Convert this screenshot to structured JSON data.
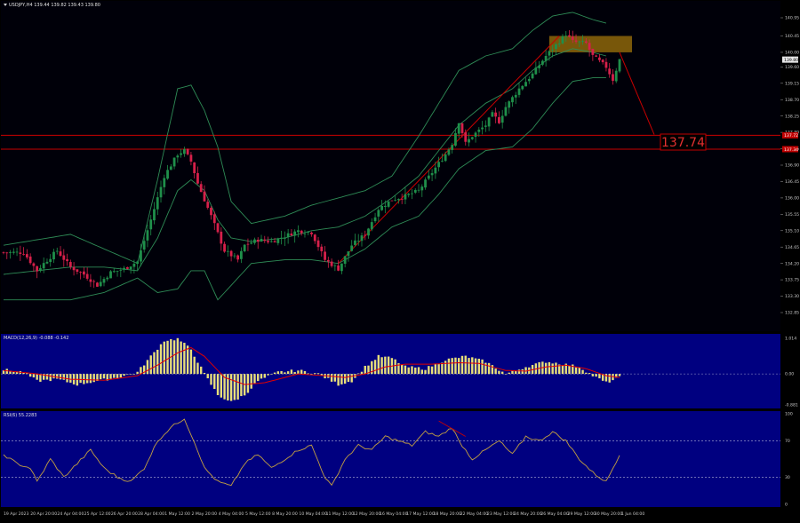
{
  "header": {
    "symbol_line": "USDJPY,H4 139.44 139.82 139.43 139.80",
    "current_price": "139.80"
  },
  "colors": {
    "main_bg": "#000009",
    "indicator_bg": "#000080",
    "candle_up": "#1f8f4a",
    "candle_down": "#d6204a",
    "bands": "#2e8b57",
    "red_line": "#c80000",
    "macd_hist": "#e8df7a",
    "macd_signal": "#e00000",
    "rsi_line": "#c4a040",
    "grid_text": "#c8c8c8"
  },
  "annotation": {
    "target_label": "137.74"
  },
  "price_axis": {
    "ticks": [
      "140.95",
      "140.45",
      "140.00",
      "139.60",
      "139.15",
      "138.70",
      "138.25",
      "137.80",
      "137.35",
      "136.90",
      "136.45",
      "136.00",
      "135.55",
      "135.10",
      "134.65",
      "134.20",
      "133.75",
      "133.30",
      "132.85"
    ],
    "tag_labels": [
      "137.72",
      "137.34"
    ]
  },
  "macd": {
    "label": "MACD(12,26,9) -0.088 -0.142",
    "ticks": [
      "1.014",
      "0.00",
      "-0.881"
    ]
  },
  "rsi": {
    "label": "RSI(6) 55.2283",
    "ticks": [
      "100",
      "70",
      "30",
      "0"
    ]
  },
  "time_axis": {
    "labels": [
      "19 Apr 2023",
      "20 Apr 20:00",
      "24 Apr 04:00",
      "25 Apr 12:00",
      "26 Apr 20:00",
      "28 Apr 04:00",
      "1 May 12:00",
      "2 May 20:00",
      "4 May 04:00",
      "5 May 12:00",
      "8 May 20:00",
      "10 May 04:00",
      "11 May 12:00",
      "12 May 20:00",
      "16 May 04:00",
      "17 May 12:00",
      "18 May 20:00",
      "22 May 04:00",
      "23 May 12:00",
      "24 May 20:00",
      "26 May 04:00",
      "29 May 12:00",
      "30 May 20:00",
      "1 Jun 04:00"
    ]
  },
  "chart_data": [
    {
      "type": "candlestick",
      "title": "USDJPY,H4",
      "ylim": [
        132.6,
        141.3
      ],
      "y_ticks": [
        140.95,
        140.45,
        140.0,
        139.6,
        139.15,
        138.7,
        138.25,
        137.8,
        137.35,
        136.9,
        136.45,
        136.0,
        135.55,
        135.1,
        134.65,
        134.2,
        133.75,
        133.3,
        132.85
      ],
      "close_anchors": [
        [
          0,
          134.5
        ],
        [
          6,
          134.5
        ],
        [
          10,
          134.0
        ],
        [
          12,
          134.2
        ],
        [
          16,
          134.55
        ],
        [
          20,
          134.1
        ],
        [
          24,
          133.9
        ],
        [
          28,
          133.6
        ],
        [
          32,
          133.95
        ],
        [
          36,
          134.05
        ],
        [
          40,
          134.25
        ],
        [
          44,
          135.4
        ],
        [
          48,
          136.6
        ],
        [
          52,
          137.2
        ],
        [
          54,
          137.3
        ],
        [
          56,
          137.0
        ],
        [
          58,
          136.4
        ],
        [
          62,
          135.5
        ],
        [
          66,
          134.55
        ],
        [
          70,
          134.3
        ],
        [
          72,
          134.7
        ],
        [
          76,
          134.85
        ],
        [
          80,
          134.8
        ],
        [
          84,
          134.95
        ],
        [
          88,
          135.1
        ],
        [
          92,
          135.05
        ],
        [
          96,
          134.3
        ],
        [
          100,
          134.05
        ],
        [
          104,
          134.7
        ],
        [
          108,
          135.0
        ],
        [
          112,
          135.7
        ],
        [
          116,
          135.95
        ],
        [
          120,
          136.05
        ],
        [
          124,
          136.2
        ],
        [
          128,
          136.7
        ],
        [
          132,
          137.2
        ],
        [
          134,
          137.5
        ],
        [
          136,
          138.1
        ],
        [
          138,
          137.5
        ],
        [
          140,
          137.7
        ],
        [
          144,
          138.0
        ],
        [
          146,
          138.3
        ],
        [
          148,
          138.1
        ],
        [
          150,
          138.5
        ],
        [
          154,
          139.0
        ],
        [
          158,
          139.4
        ],
        [
          162,
          139.9
        ],
        [
          166,
          140.3
        ],
        [
          168,
          140.5
        ],
        [
          170,
          140.3
        ],
        [
          174,
          140.25
        ],
        [
          176,
          139.9
        ],
        [
          180,
          139.6
        ],
        [
          182,
          139.25
        ],
        [
          184,
          139.8
        ]
      ],
      "bollinger_bands": {
        "upper": [
          [
            0,
            134.7
          ],
          [
            20,
            135.0
          ],
          [
            30,
            134.6
          ],
          [
            40,
            134.2
          ],
          [
            46,
            136.5
          ],
          [
            52,
            139.0
          ],
          [
            56,
            139.1
          ],
          [
            60,
            138.4
          ],
          [
            64,
            137.4
          ],
          [
            68,
            135.9
          ],
          [
            74,
            135.3
          ],
          [
            84,
            135.5
          ],
          [
            92,
            135.8
          ],
          [
            100,
            136.0
          ],
          [
            108,
            136.2
          ],
          [
            116,
            136.6
          ],
          [
            124,
            137.7
          ],
          [
            130,
            138.6
          ],
          [
            136,
            139.5
          ],
          [
            144,
            139.9
          ],
          [
            152,
            140.1
          ],
          [
            158,
            140.6
          ],
          [
            164,
            141.0
          ],
          [
            170,
            141.1
          ],
          [
            176,
            140.9
          ],
          [
            180,
            140.8
          ]
        ],
        "middle": [
          [
            0,
            133.9
          ],
          [
            20,
            134.1
          ],
          [
            30,
            134.1
          ],
          [
            40,
            134.0
          ],
          [
            46,
            134.9
          ],
          [
            52,
            136.2
          ],
          [
            56,
            136.5
          ],
          [
            60,
            136.2
          ],
          [
            64,
            135.4
          ],
          [
            68,
            134.9
          ],
          [
            74,
            134.8
          ],
          [
            84,
            134.9
          ],
          [
            92,
            135.1
          ],
          [
            100,
            135.2
          ],
          [
            108,
            135.5
          ],
          [
            116,
            136.0
          ],
          [
            124,
            136.6
          ],
          [
            130,
            137.3
          ],
          [
            136,
            138.0
          ],
          [
            144,
            138.6
          ],
          [
            152,
            139.0
          ],
          [
            158,
            139.5
          ],
          [
            164,
            139.9
          ],
          [
            170,
            140.1
          ],
          [
            176,
            140.0
          ],
          [
            180,
            139.9
          ]
        ],
        "lower": [
          [
            0,
            133.2
          ],
          [
            20,
            133.2
          ],
          [
            30,
            133.4
          ],
          [
            40,
            133.8
          ],
          [
            46,
            133.4
          ],
          [
            52,
            133.5
          ],
          [
            56,
            134.0
          ],
          [
            60,
            134.0
          ],
          [
            64,
            133.2
          ],
          [
            68,
            133.6
          ],
          [
            74,
            134.2
          ],
          [
            84,
            134.3
          ],
          [
            92,
            134.3
          ],
          [
            100,
            134.2
          ],
          [
            108,
            134.6
          ],
          [
            116,
            135.2
          ],
          [
            124,
            135.5
          ],
          [
            130,
            136.1
          ],
          [
            136,
            136.8
          ],
          [
            144,
            137.3
          ],
          [
            152,
            137.4
          ],
          [
            158,
            137.9
          ],
          [
            164,
            138.6
          ],
          [
            170,
            139.2
          ],
          [
            176,
            139.3
          ],
          [
            180,
            139.3
          ]
        ]
      },
      "trendline": {
        "from": [
          "11 May 12:00",
          134.2
        ],
        "to": [
          "29 May 12:00",
          140.4
        ]
      },
      "projection": {
        "from": [
          "1 Jun 04:00",
          140.0
        ],
        "to_price": 137.74
      },
      "horizontal_levels": [
        137.72,
        137.34
      ],
      "resistance_zone": [
        140.0,
        140.45
      ]
    },
    {
      "type": "bar",
      "title": "MACD(12,26,9) -0.088 -0.142",
      "ylim": [
        -0.881,
        1.014
      ],
      "histogram_anchors": [
        [
          0,
          0.12
        ],
        [
          6,
          0.05
        ],
        [
          10,
          -0.2
        ],
        [
          16,
          -0.15
        ],
        [
          22,
          -0.3
        ],
        [
          28,
          -0.2
        ],
        [
          34,
          -0.1
        ],
        [
          40,
          0.05
        ],
        [
          44,
          0.5
        ],
        [
          48,
          0.95
        ],
        [
          52,
          1.0
        ],
        [
          56,
          0.7
        ],
        [
          60,
          0.0
        ],
        [
          64,
          -0.6
        ],
        [
          68,
          -0.8
        ],
        [
          72,
          -0.6
        ],
        [
          76,
          -0.2
        ],
        [
          82,
          0.05
        ],
        [
          88,
          0.1
        ],
        [
          94,
          0.0
        ],
        [
          100,
          -0.3
        ],
        [
          104,
          -0.2
        ],
        [
          108,
          0.2
        ],
        [
          112,
          0.5
        ],
        [
          116,
          0.45
        ],
        [
          120,
          0.2
        ],
        [
          126,
          0.15
        ],
        [
          132,
          0.4
        ],
        [
          138,
          0.5
        ],
        [
          144,
          0.35
        ],
        [
          150,
          0.0
        ],
        [
          156,
          0.2
        ],
        [
          162,
          0.35
        ],
        [
          166,
          0.3
        ],
        [
          172,
          0.2
        ],
        [
          176,
          -0.05
        ],
        [
          180,
          -0.25
        ],
        [
          184,
          -0.1
        ]
      ],
      "signal_anchors": [
        [
          0,
          0.1
        ],
        [
          10,
          0.0
        ],
        [
          20,
          -0.15
        ],
        [
          30,
          -0.18
        ],
        [
          40,
          -0.05
        ],
        [
          46,
          0.25
        ],
        [
          52,
          0.6
        ],
        [
          56,
          0.75
        ],
        [
          60,
          0.5
        ],
        [
          66,
          -0.1
        ],
        [
          72,
          -0.3
        ],
        [
          78,
          -0.25
        ],
        [
          88,
          0.0
        ],
        [
          96,
          -0.05
        ],
        [
          102,
          -0.1
        ],
        [
          108,
          0.0
        ],
        [
          114,
          0.2
        ],
        [
          120,
          0.28
        ],
        [
          128,
          0.28
        ],
        [
          136,
          0.32
        ],
        [
          142,
          0.3
        ],
        [
          150,
          0.1
        ],
        [
          156,
          0.08
        ],
        [
          162,
          0.2
        ],
        [
          168,
          0.25
        ],
        [
          174,
          0.15
        ],
        [
          180,
          -0.05
        ],
        [
          184,
          -0.1
        ]
      ]
    },
    {
      "type": "line",
      "title": "RSI(6) 55.2283",
      "ylim": [
        0,
        100
      ],
      "levels": [
        70,
        30
      ],
      "rsi_anchors": [
        [
          0,
          55
        ],
        [
          4,
          45
        ],
        [
          8,
          40
        ],
        [
          10,
          25
        ],
        [
          14,
          50
        ],
        [
          18,
          30
        ],
        [
          22,
          45
        ],
        [
          26,
          60
        ],
        [
          30,
          40
        ],
        [
          34,
          30
        ],
        [
          38,
          25
        ],
        [
          42,
          40
        ],
        [
          46,
          70
        ],
        [
          50,
          85
        ],
        [
          54,
          95
        ],
        [
          58,
          60
        ],
        [
          60,
          40
        ],
        [
          64,
          25
        ],
        [
          68,
          20
        ],
        [
          72,
          45
        ],
        [
          76,
          55
        ],
        [
          80,
          40
        ],
        [
          84,
          50
        ],
        [
          88,
          60
        ],
        [
          92,
          65
        ],
        [
          96,
          30
        ],
        [
          98,
          20
        ],
        [
          102,
          50
        ],
        [
          106,
          65
        ],
        [
          110,
          60
        ],
        [
          114,
          75
        ],
        [
          118,
          70
        ],
        [
          122,
          65
        ],
        [
          126,
          80
        ],
        [
          130,
          75
        ],
        [
          134,
          85
        ],
        [
          136,
          70
        ],
        [
          140,
          50
        ],
        [
          144,
          60
        ],
        [
          148,
          70
        ],
        [
          152,
          55
        ],
        [
          156,
          75
        ],
        [
          160,
          70
        ],
        [
          164,
          80
        ],
        [
          168,
          70
        ],
        [
          172,
          50
        ],
        [
          176,
          35
        ],
        [
          180,
          25
        ],
        [
          184,
          55
        ]
      ]
    }
  ]
}
